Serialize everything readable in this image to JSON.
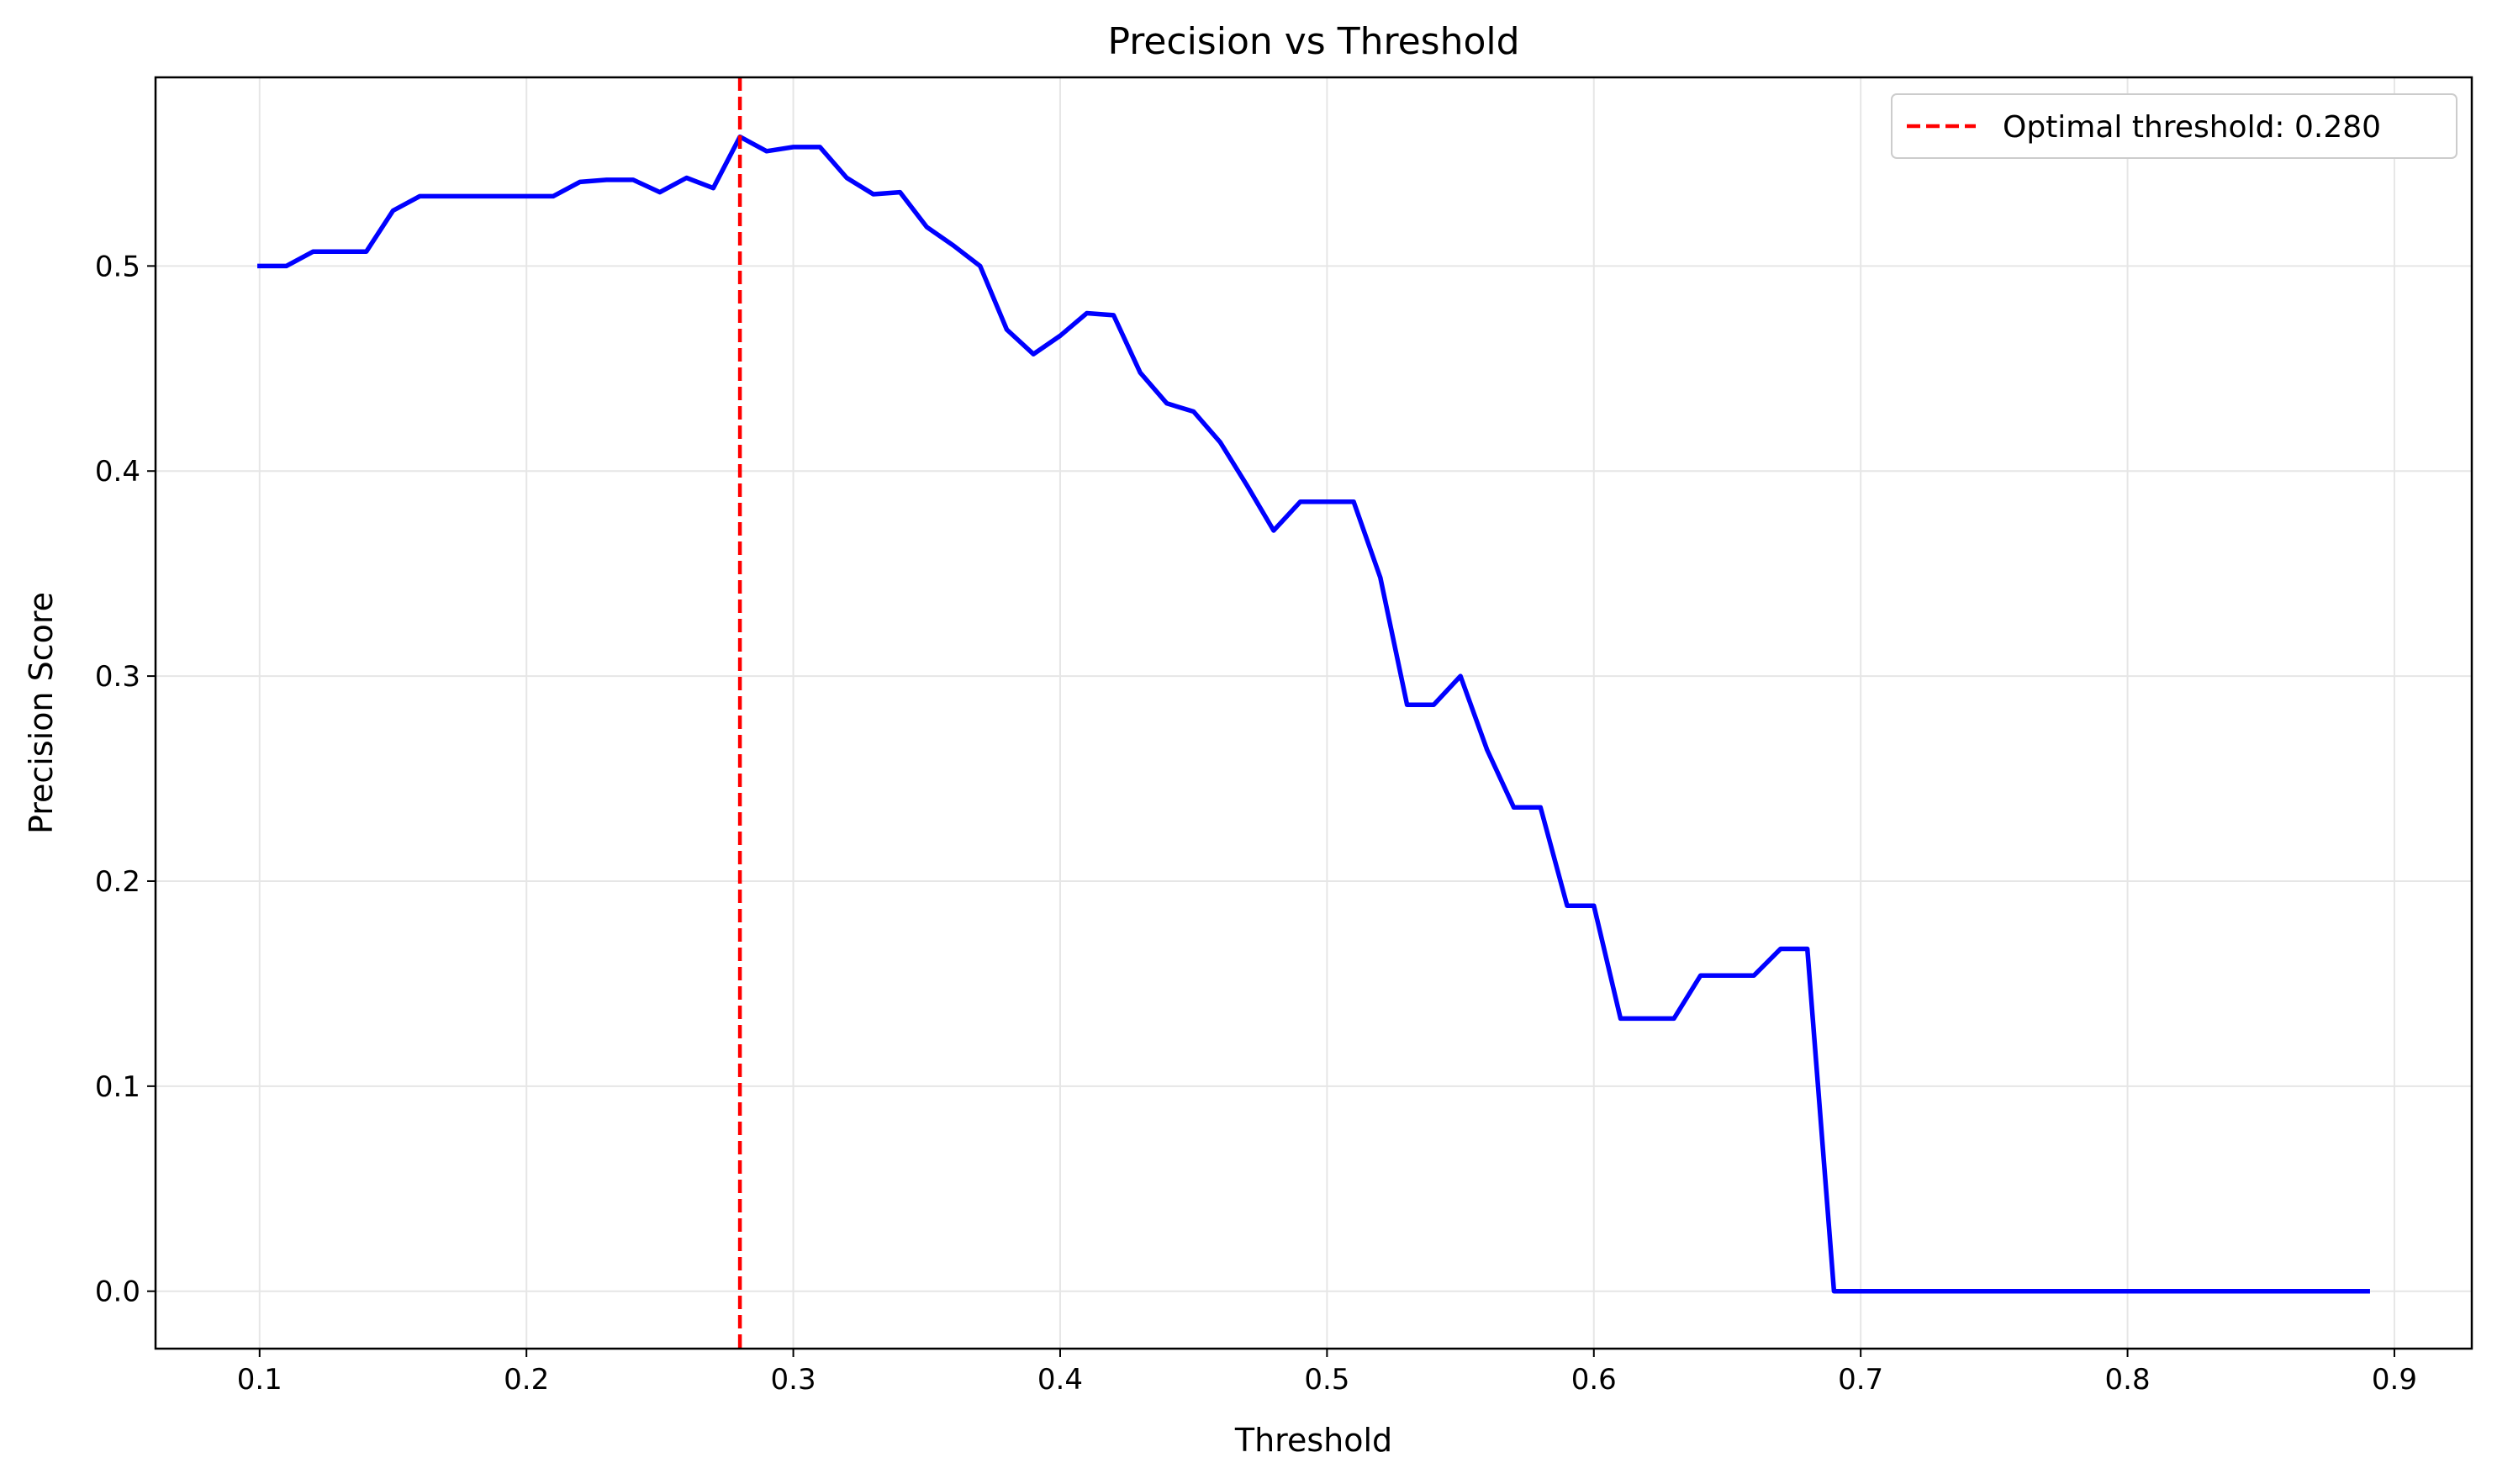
{
  "chart_data": {
    "type": "line",
    "title": "Precision vs Threshold",
    "xlabel": "Threshold",
    "ylabel": "Precision Score",
    "xlim": [
      0.061,
      0.929
    ],
    "ylim": [
      -0.028,
      0.592
    ],
    "xticks": [
      0.1,
      0.2,
      0.3,
      0.4,
      0.5,
      0.6,
      0.7,
      0.8,
      0.9
    ],
    "xtick_labels": [
      "0.1",
      "0.2",
      "0.3",
      "0.4",
      "0.5",
      "0.6",
      "0.7",
      "0.8",
      "0.9"
    ],
    "yticks": [
      0.0,
      0.1,
      0.2,
      0.3,
      0.4,
      0.5
    ],
    "ytick_labels": [
      "0.0",
      "0.1",
      "0.2",
      "0.3",
      "0.4",
      "0.5"
    ],
    "grid": true,
    "legend_position": "top-right",
    "x": [
      0.1,
      0.11,
      0.12,
      0.13,
      0.14,
      0.15,
      0.16,
      0.17,
      0.18,
      0.19,
      0.2,
      0.21,
      0.22,
      0.23,
      0.24,
      0.25,
      0.26,
      0.27,
      0.28,
      0.29,
      0.3,
      0.31,
      0.32,
      0.33,
      0.34,
      0.35,
      0.36,
      0.37,
      0.38,
      0.39,
      0.4,
      0.41,
      0.42,
      0.43,
      0.44,
      0.45,
      0.46,
      0.47,
      0.48,
      0.49,
      0.5,
      0.51,
      0.52,
      0.53,
      0.54,
      0.55,
      0.56,
      0.57,
      0.58,
      0.59,
      0.6,
      0.61,
      0.62,
      0.63,
      0.64,
      0.65,
      0.66,
      0.67,
      0.68,
      0.69,
      0.7,
      0.71,
      0.72,
      0.73,
      0.74,
      0.75,
      0.76,
      0.77,
      0.78,
      0.79,
      0.8,
      0.81,
      0.82,
      0.83,
      0.84,
      0.85,
      0.86,
      0.87,
      0.88,
      0.89
    ],
    "series": [
      {
        "color": "#0000ff",
        "values": [
          0.5,
          0.5,
          0.507,
          0.507,
          0.507,
          0.527,
          0.534,
          0.534,
          0.534,
          0.534,
          0.534,
          0.534,
          0.541,
          0.542,
          0.542,
          0.536,
          0.543,
          0.538,
          0.563,
          0.556,
          0.558,
          0.558,
          0.543,
          0.535,
          0.536,
          0.519,
          0.51,
          0.5,
          0.469,
          0.457,
          0.466,
          0.477,
          0.476,
          0.448,
          0.433,
          0.429,
          0.414,
          0.393,
          0.371,
          0.385,
          0.385,
          0.385,
          0.348,
          0.286,
          0.286,
          0.3,
          0.264,
          0.236,
          0.236,
          0.188,
          0.188,
          0.133,
          0.133,
          0.133,
          0.154,
          0.154,
          0.154,
          0.167,
          0.167,
          0.0,
          0.0,
          0.0,
          0.0,
          0.0,
          0.0,
          0.0,
          0.0,
          0.0,
          0.0,
          0.0,
          0.0,
          0.0,
          0.0,
          0.0,
          0.0,
          0.0,
          0.0,
          0.0,
          0.0,
          0.0
        ]
      }
    ],
    "vline": {
      "x": 0.28,
      "color": "#ff0000",
      "label": "Optimal threshold: 0.280"
    }
  }
}
